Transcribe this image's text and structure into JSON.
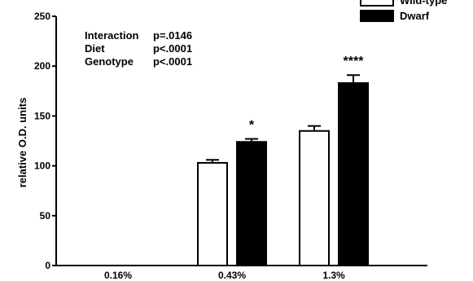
{
  "chart_data": {
    "type": "bar",
    "categories": [
      "0.16%",
      "0.43%",
      "1.3%"
    ],
    "series": [
      {
        "name": "Wild-type",
        "color": "#ffffff",
        "values": [
          null,
          103,
          135
        ],
        "errors": [
          null,
          3,
          5
        ]
      },
      {
        "name": "Dwarf",
        "color": "#000000",
        "values": [
          null,
          124,
          183
        ],
        "errors": [
          null,
          3,
          8
        ]
      }
    ],
    "significance": [
      null,
      "*",
      "****"
    ],
    "ylabel": "relative O.D. units",
    "xlabel": "",
    "ylim": [
      0,
      250
    ],
    "yticks": [
      0,
      50,
      100,
      150,
      200,
      250
    ],
    "legend_position": "top-right",
    "grid": false,
    "annotations": [
      {
        "label": "Interaction",
        "value": "p=.0146"
      },
      {
        "label": "Diet",
        "value": "p<.0001"
      },
      {
        "label": "Genotype",
        "value": "p<.0001"
      }
    ]
  }
}
